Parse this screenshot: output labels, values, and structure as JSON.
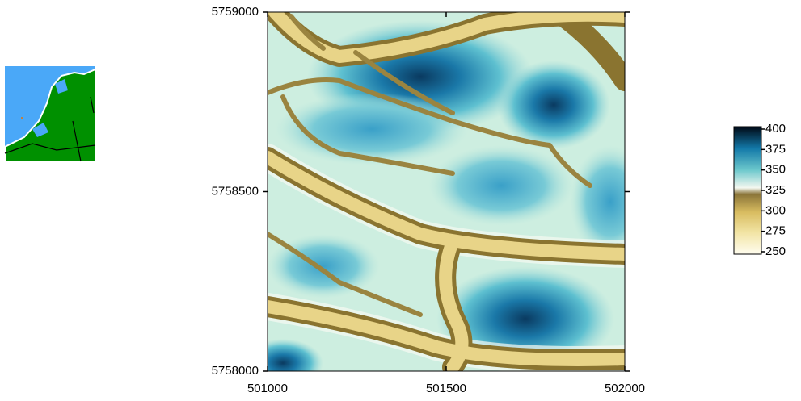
{
  "map": {
    "xlim": [
      501000,
      502000
    ],
    "ylim": [
      5758000,
      5759000
    ],
    "xticks": [
      501000,
      501500,
      502000
    ],
    "yticks": [
      5758000,
      5758500,
      5759000
    ]
  },
  "colorbar": {
    "lim": [
      250,
      400
    ],
    "ticks": [
      250,
      275,
      300,
      325,
      350,
      375,
      400
    ]
  }
}
